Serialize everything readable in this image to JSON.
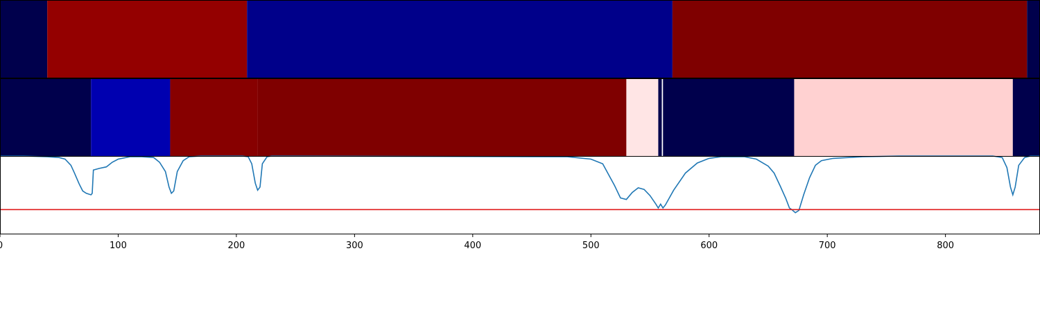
{
  "chart_data": {
    "type": "heatmap",
    "title": "",
    "xlabel": "",
    "ylabel": "",
    "xlim": [
      0,
      880
    ],
    "xticks": [
      0,
      100,
      200,
      300,
      400,
      500,
      600,
      700,
      800
    ],
    "grid": false,
    "legend": "none",
    "rows": [
      {
        "segments": [
          {
            "start": 0,
            "end": 40,
            "color": "#00004c"
          },
          {
            "start": 40,
            "end": 209,
            "color": "#940000"
          },
          {
            "start": 209,
            "end": 569,
            "color": "#00008a"
          },
          {
            "start": 569,
            "end": 869,
            "color": "#7f0000"
          },
          {
            "start": 869,
            "end": 880,
            "color": "#00004c"
          }
        ]
      },
      {
        "segments": [
          {
            "start": 0,
            "end": 77,
            "color": "#00004c"
          },
          {
            "start": 77,
            "end": 144,
            "color": "#0000b0"
          },
          {
            "start": 144,
            "end": 218,
            "color": "#870000"
          },
          {
            "start": 218,
            "end": 530,
            "color": "#7f0000"
          },
          {
            "start": 530,
            "end": 557,
            "color": "#ffe5e5"
          },
          {
            "start": 557,
            "end": 560,
            "color": "#00004c"
          },
          {
            "start": 560,
            "end": 561,
            "color": "#ffffff"
          },
          {
            "start": 561,
            "end": 672,
            "color": "#00004c"
          },
          {
            "start": 672,
            "end": 857,
            "color": "#ffd1d1"
          },
          {
            "start": 857,
            "end": 880,
            "color": "#00004c"
          }
        ]
      }
    ],
    "line": {
      "color": "#1f77b4",
      "ylim": [
        0,
        1
      ],
      "points": [
        [
          0,
          1.0
        ],
        [
          20,
          1.0
        ],
        [
          40,
          0.99
        ],
        [
          50,
          0.98
        ],
        [
          55,
          0.96
        ],
        [
          60,
          0.88
        ],
        [
          63,
          0.78
        ],
        [
          67,
          0.64
        ],
        [
          70,
          0.55
        ],
        [
          73,
          0.52
        ],
        [
          75,
          0.51
        ],
        [
          77,
          0.5
        ],
        [
          78,
          0.52
        ],
        [
          79,
          0.82
        ],
        [
          84,
          0.84
        ],
        [
          90,
          0.86
        ],
        [
          95,
          0.92
        ],
        [
          100,
          0.96
        ],
        [
          110,
          0.99
        ],
        [
          120,
          0.99
        ],
        [
          130,
          0.98
        ],
        [
          135,
          0.92
        ],
        [
          140,
          0.8
        ],
        [
          143,
          0.6
        ],
        [
          145,
          0.52
        ],
        [
          147,
          0.55
        ],
        [
          150,
          0.8
        ],
        [
          155,
          0.94
        ],
        [
          160,
          0.99
        ],
        [
          170,
          1.0
        ],
        [
          205,
          1.0
        ],
        [
          210,
          0.99
        ],
        [
          213,
          0.9
        ],
        [
          216,
          0.65
        ],
        [
          218,
          0.56
        ],
        [
          220,
          0.6
        ],
        [
          222,
          0.9
        ],
        [
          226,
          0.99
        ],
        [
          230,
          1.0
        ],
        [
          480,
          0.99
        ],
        [
          500,
          0.96
        ],
        [
          510,
          0.9
        ],
        [
          515,
          0.76
        ],
        [
          520,
          0.62
        ],
        [
          525,
          0.46
        ],
        [
          530,
          0.44
        ],
        [
          535,
          0.53
        ],
        [
          540,
          0.59
        ],
        [
          545,
          0.57
        ],
        [
          550,
          0.49
        ],
        [
          555,
          0.38
        ],
        [
          557,
          0.33
        ],
        [
          559,
          0.38
        ],
        [
          561,
          0.33
        ],
        [
          563,
          0.37
        ],
        [
          570,
          0.56
        ],
        [
          580,
          0.78
        ],
        [
          590,
          0.91
        ],
        [
          600,
          0.97
        ],
        [
          610,
          0.99
        ],
        [
          630,
          0.99
        ],
        [
          640,
          0.96
        ],
        [
          650,
          0.87
        ],
        [
          655,
          0.78
        ],
        [
          660,
          0.62
        ],
        [
          665,
          0.45
        ],
        [
          668,
          0.33
        ],
        [
          670,
          0.31
        ],
        [
          673,
          0.27
        ],
        [
          676,
          0.3
        ],
        [
          680,
          0.5
        ],
        [
          685,
          0.72
        ],
        [
          690,
          0.88
        ],
        [
          695,
          0.94
        ],
        [
          705,
          0.97
        ],
        [
          730,
          0.99
        ],
        [
          760,
          1.0
        ],
        [
          840,
          1.0
        ],
        [
          848,
          0.98
        ],
        [
          852,
          0.85
        ],
        [
          855,
          0.6
        ],
        [
          857,
          0.5
        ],
        [
          859,
          0.6
        ],
        [
          862,
          0.88
        ],
        [
          867,
          0.98
        ],
        [
          872,
          1.0
        ],
        [
          880,
          1.0
        ]
      ]
    },
    "threshold": {
      "value": 0.31,
      "color": "#e01b1b"
    }
  }
}
